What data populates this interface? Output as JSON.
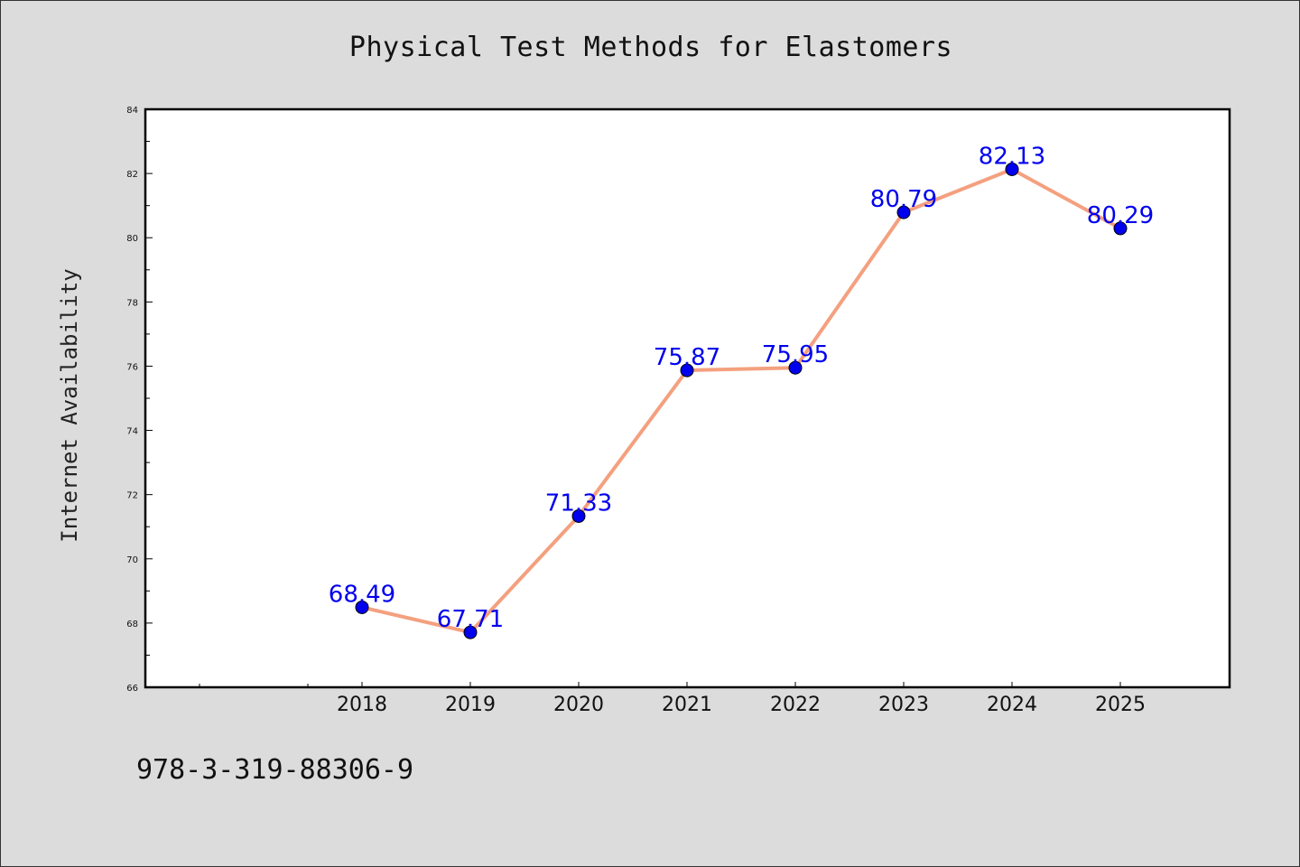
{
  "chart_data": {
    "type": "line",
    "title": "Physical Test Methods for Elastomers",
    "xlabel": "",
    "ylabel": "Internet Availability",
    "categories": [
      "2018",
      "2019",
      "2020",
      "2021",
      "2022",
      "2023",
      "2024",
      "2025"
    ],
    "series": [
      {
        "values": [
          68.49,
          67.71,
          71.33,
          75.87,
          75.95,
          80.79,
          82.13,
          80.29
        ],
        "data_labels": [
          "68.49",
          "67.71",
          "71.33",
          "75.87",
          "75.95",
          "80.79",
          "82.13",
          "80.29"
        ],
        "line_color": "#f4a07f",
        "marker_color": "#0000ee",
        "label_color": "#0000ee"
      }
    ],
    "ylim": [
      66,
      84
    ],
    "y_ticks": [
      "66",
      "68",
      "70",
      "72",
      "74",
      "76",
      "78",
      "80",
      "82",
      "84"
    ],
    "grid": false,
    "legend": "none"
  },
  "footer": {
    "isbn": "978-3-319-88306-9"
  }
}
